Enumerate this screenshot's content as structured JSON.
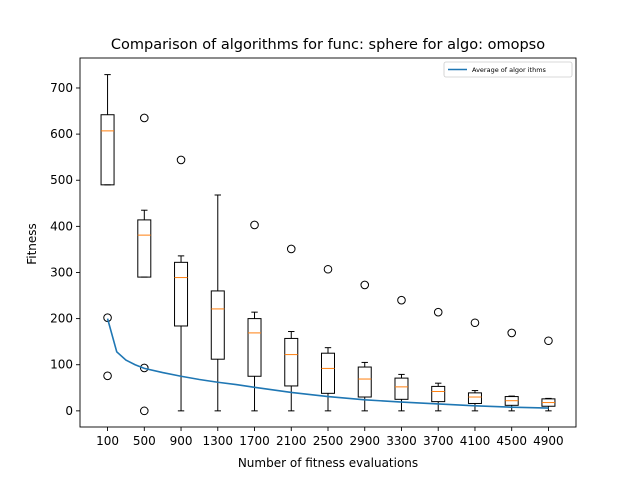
{
  "chart_data": {
    "type": "box",
    "title": "Comparison of algorithms for func: sphere for algo: omopso",
    "xlabel": "Number of fitness evaluations",
    "ylabel": "Fitness",
    "categories": [
      "100",
      "500",
      "900",
      "1300",
      "1700",
      "2100",
      "2500",
      "2900",
      "3300",
      "3700",
      "4100",
      "4500",
      "4900"
    ],
    "boxes": [
      {
        "x": "100",
        "whisker_low": 490,
        "q1": 490,
        "median": 607,
        "q3": 642,
        "whisker_high": 729,
        "outliers": [
          202,
          76
        ]
      },
      {
        "x": "500",
        "whisker_low": 290,
        "q1": 290,
        "median": 381,
        "q3": 414,
        "whisker_high": 435,
        "outliers": [
          635,
          93,
          0
        ]
      },
      {
        "x": "900",
        "whisker_low": 0,
        "q1": 184,
        "median": 289,
        "q3": 322,
        "whisker_high": 336,
        "outliers": [
          544
        ]
      },
      {
        "x": "1300",
        "whisker_low": 0,
        "q1": 112,
        "median": 221,
        "q3": 260,
        "whisker_high": 468,
        "outliers": []
      },
      {
        "x": "1700",
        "whisker_low": 0,
        "q1": 75,
        "median": 169,
        "q3": 200,
        "whisker_high": 214,
        "outliers": [
          403
        ]
      },
      {
        "x": "2100",
        "whisker_low": 0,
        "q1": 54,
        "median": 122,
        "q3": 157,
        "whisker_high": 172,
        "outliers": [
          351
        ]
      },
      {
        "x": "2500",
        "whisker_low": 0,
        "q1": 38,
        "median": 92,
        "q3": 125,
        "whisker_high": 137,
        "outliers": [
          307
        ]
      },
      {
        "x": "2900",
        "whisker_low": 0,
        "q1": 30,
        "median": 69,
        "q3": 95,
        "whisker_high": 105,
        "outliers": [
          273
        ]
      },
      {
        "x": "3300",
        "whisker_low": 0,
        "q1": 25,
        "median": 52,
        "q3": 71,
        "whisker_high": 79,
        "outliers": [
          240
        ]
      },
      {
        "x": "3700",
        "whisker_low": 0,
        "q1": 20,
        "median": 42,
        "q3": 53,
        "whisker_high": 60,
        "outliers": [
          214
        ]
      },
      {
        "x": "4100",
        "whisker_low": 0,
        "q1": 16,
        "median": 30,
        "q3": 39,
        "whisker_high": 44,
        "outliers": [
          191
        ]
      },
      {
        "x": "4500",
        "whisker_low": 0,
        "q1": 12,
        "median": 22,
        "q3": 31,
        "whisker_high": 32,
        "outliers": [
          169
        ]
      },
      {
        "x": "4900",
        "whisker_low": 0,
        "q1": 10,
        "median": 18,
        "q3": 26,
        "whisker_high": 27,
        "outliers": [
          152
        ]
      }
    ],
    "series": [
      {
        "name": "Average of algor ithms",
        "type": "line",
        "color": "#1f77b4",
        "x": [
          100,
          200,
          300,
          400,
          500,
          700,
          900,
          1100,
          1300,
          1500,
          1700,
          2100,
          2500,
          2900,
          3300,
          3700,
          4100,
          4500,
          4900
        ],
        "values": [
          200,
          128,
          110,
          100,
          92,
          83,
          75,
          68,
          62,
          57,
          51,
          40,
          31,
          24,
          19,
          15,
          11,
          8,
          6
        ]
      }
    ],
    "ylim": [
      -35,
      765
    ],
    "xlim": [
      -200,
      5200
    ],
    "yticks": [
      0,
      100,
      200,
      300,
      400,
      500,
      600,
      700
    ],
    "grid": false,
    "legend_position": "top-right",
    "colors": {
      "box": "#000000",
      "median": "#ff7f0e",
      "mean_line": "#1f77b4"
    }
  }
}
